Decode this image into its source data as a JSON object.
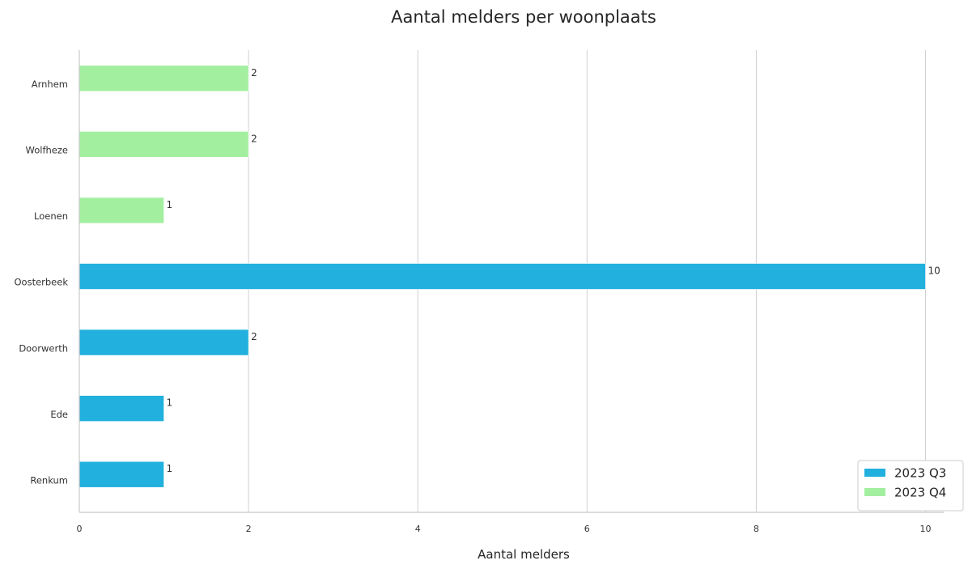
{
  "chart_data": {
    "type": "bar",
    "orientation": "horizontal",
    "title": "Aantal melders per woonplaats",
    "xlabel": "Aantal melders",
    "ylabel": "",
    "xlim": [
      0,
      10.2
    ],
    "xticks": [
      0,
      2,
      4,
      6,
      8,
      10
    ],
    "grid": "vertical",
    "legend_position": "bottom-right",
    "categories": [
      "Arnhem",
      "Wolfheze",
      "Loenen",
      "Oosterbeek",
      "Doorwerth",
      "Ede",
      "Renkum"
    ],
    "series": [
      {
        "name": "2023 Q3",
        "color": "#22b0de",
        "values": [
          null,
          null,
          null,
          10,
          2,
          1,
          1
        ]
      },
      {
        "name": "2023 Q4",
        "color": "#a3efa0",
        "values": [
          2,
          2,
          1,
          null,
          null,
          null,
          null
        ]
      }
    ]
  }
}
